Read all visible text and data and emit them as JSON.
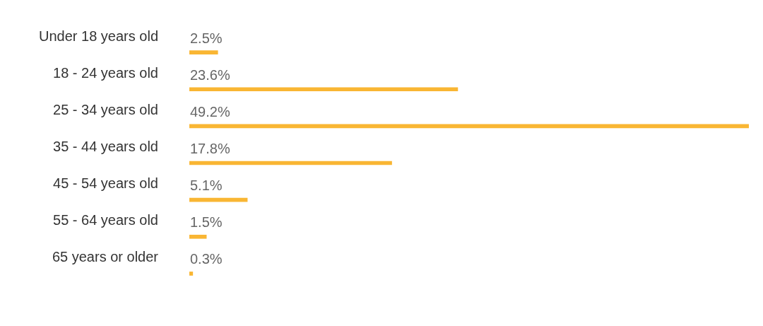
{
  "chart_data": {
    "type": "bar",
    "orientation": "horizontal",
    "categories": [
      "Under 18 years old",
      "18 - 24 years old",
      "25 - 34 years old",
      "35 - 44 years old",
      "45 - 54 years old",
      "55 - 64 years old",
      "65 years or older"
    ],
    "values": [
      2.5,
      23.6,
      49.2,
      17.8,
      5.1,
      1.5,
      0.3
    ],
    "value_labels": [
      "2.5%",
      "23.6%",
      "49.2%",
      "17.8%",
      "5.1%",
      "1.5%",
      "0.3%"
    ],
    "color": "#f9b633",
    "legend": false
  }
}
